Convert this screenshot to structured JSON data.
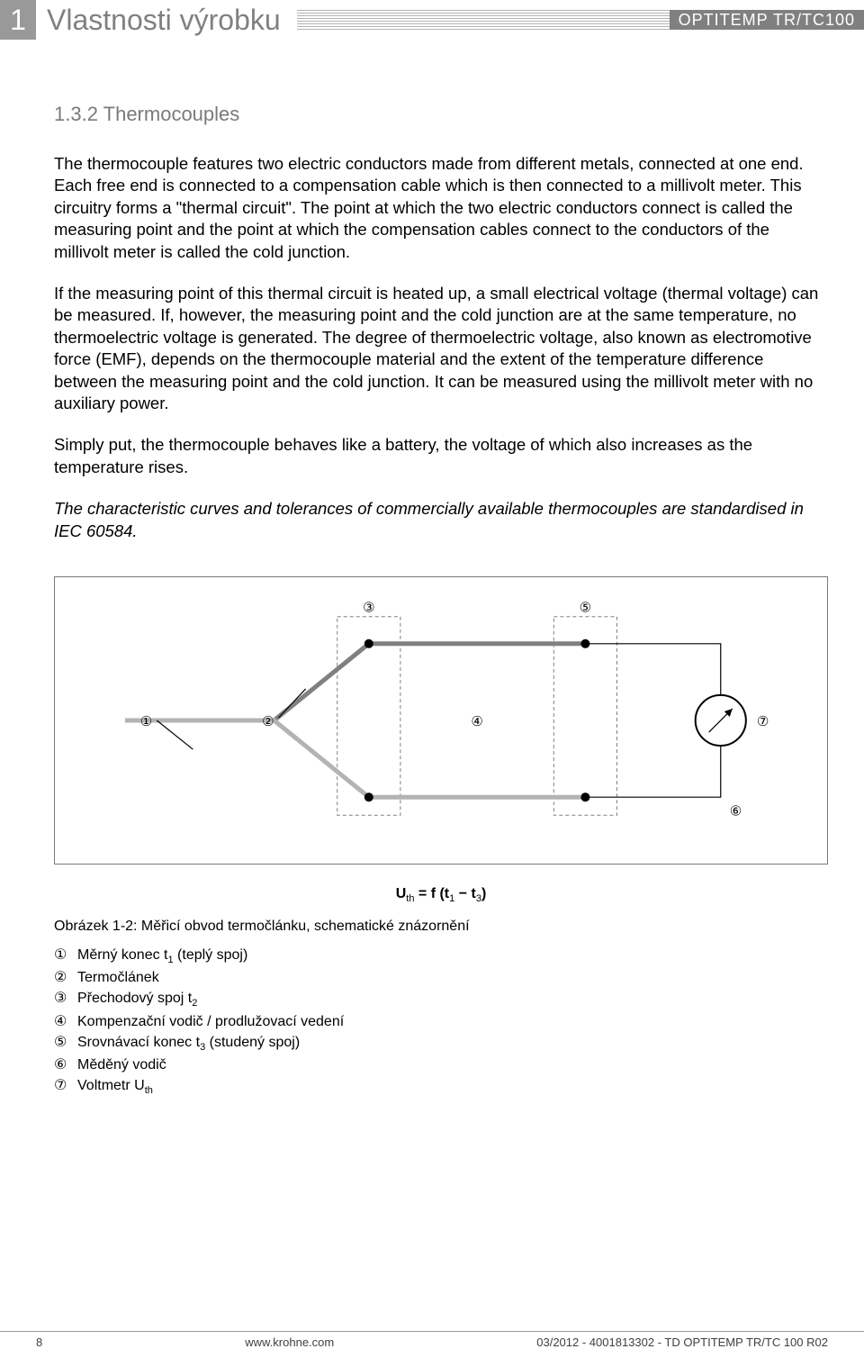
{
  "header": {
    "chapter_number": "1",
    "chapter_title": "Vlastnosti výrobku",
    "product": "OPTITEMP TR/TC100"
  },
  "section": {
    "number": "1.3.2 Thermocouples"
  },
  "paragraphs": {
    "p1": "The thermocouple features two electric conductors made from different metals, connected at one end. Each free end is connected to a compensation cable which is then connected to a millivolt meter. This circuitry forms a \"thermal circuit\". The point at which the two electric conductors connect is called the measuring point and the point at which the compensation cables connect to the conductors of the millivolt meter is called the cold junction.",
    "p2": "If the measuring point of this thermal circuit is heated up, a small electrical voltage (thermal voltage) can be measured. If, however, the measuring point and the cold junction are at the same temperature, no thermoelectric voltage is generated. The degree of thermoelectric voltage, also known as electromotive force (EMF), depends on the thermocouple material and the extent of the temperature difference between the measuring point and the cold junction. It can be measured using the millivolt meter with no auxiliary power.",
    "p3": "Simply put, the thermocouple behaves like a battery, the voltage of which also increases as the temperature rises.",
    "p4": "The characteristic curves and tolerances of commercially available thermocouples are standardised in IEC 60584."
  },
  "equation": {
    "prefix": "U",
    "sub1": "th",
    "mid": " = f (t",
    "sub2": "1",
    "mid2": " − t",
    "sub3": "3",
    "suffix": ")"
  },
  "figure": {
    "caption": "Obrázek 1-2: Měřicí obvod termočlánku, schematické znázornění",
    "legend": [
      {
        "n": "①",
        "t": "Měrný konec t",
        "sub": "1",
        "extra": " (teplý spoj)"
      },
      {
        "n": "②",
        "t": "Termočlánek",
        "sub": "",
        "extra": ""
      },
      {
        "n": "③",
        "t": "Přechodový spoj t",
        "sub": "2",
        "extra": ""
      },
      {
        "n": "④",
        "t": "Kompenzační vodič / prodlužovací vedení",
        "sub": "",
        "extra": ""
      },
      {
        "n": "⑤",
        "t": "Srovnávací konec t",
        "sub": "3",
        "extra": " (studený spoj)"
      },
      {
        "n": "⑥",
        "t": "Měděný vodič",
        "sub": "",
        "extra": ""
      },
      {
        "n": "⑦",
        "t": "Voltmetr U",
        "sub": "th",
        "extra": ""
      }
    ],
    "markers": {
      "m1": "①",
      "m2": "②",
      "m3": "③",
      "m4": "④",
      "m5": "⑤",
      "m6": "⑥",
      "m7": "⑦"
    }
  },
  "footer": {
    "page": "8",
    "url": "www.krohne.com",
    "doc": "03/2012 - 4001813302 - TD OPTITEMP TR/TC 100 R02"
  },
  "colors": {
    "gray_dark": "#808080",
    "gray_mid": "#999999",
    "gray_light": "#b3b3b3"
  }
}
